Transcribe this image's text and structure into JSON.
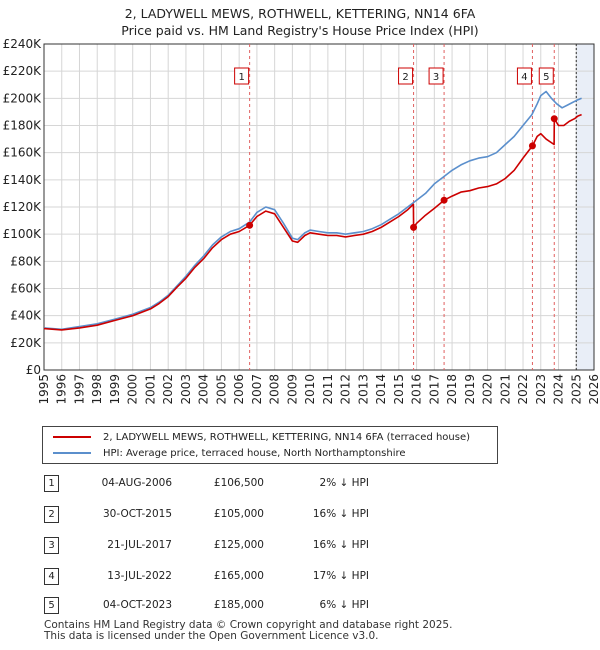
{
  "title_line1": "2, LADYWELL MEWS, ROTHWELL, KETTERING, NN14 6FA",
  "title_line2": "Price paid vs. HM Land Registry's House Price Index (HPI)",
  "legend": {
    "property_label": "2, LADYWELL MEWS, ROTHWELL, KETTERING, NN14 6FA (terraced house)",
    "hpi_label": "HPI: Average price, terraced house, North Northamptonshire"
  },
  "transactions": [
    {
      "num": "1",
      "date": "04-AUG-2006",
      "price": "£106,500",
      "hpi": "2% ↓ HPI"
    },
    {
      "num": "2",
      "date": "30-OCT-2015",
      "price": "£105,000",
      "hpi": "16% ↓ HPI"
    },
    {
      "num": "3",
      "date": "21-JUL-2017",
      "price": "£125,000",
      "hpi": "16% ↓ HPI"
    },
    {
      "num": "4",
      "date": "13-JUL-2022",
      "price": "£165,000",
      "hpi": "17% ↓ HPI"
    },
    {
      "num": "5",
      "date": "04-OCT-2023",
      "price": "£185,000",
      "hpi": "6% ↓ HPI"
    }
  ],
  "footer_line1": "Contains HM Land Registry data © Crown copyright and database right 2025.",
  "footer_line2": "This data is licensed under the Open Government Licence v3.0.",
  "colors": {
    "property": "#cc0000",
    "hpi": "#5b8fcc",
    "shade": "#e9eef7",
    "grid": "#d6d6d6",
    "marker_line": "#e06060"
  },
  "chart_data": {
    "type": "line",
    "xlim": [
      1995,
      2026
    ],
    "ylim": [
      0,
      240000
    ],
    "y_ticks": [
      0,
      20000,
      40000,
      60000,
      80000,
      100000,
      120000,
      140000,
      160000,
      180000,
      200000,
      220000,
      240000
    ],
    "y_tick_labels": [
      "£0",
      "£20K",
      "£40K",
      "£60K",
      "£80K",
      "£100K",
      "£120K",
      "£140K",
      "£160K",
      "£180K",
      "£200K",
      "£220K",
      "£240K"
    ],
    "x_ticks": [
      1995,
      1996,
      1997,
      1998,
      1999,
      2000,
      2001,
      2002,
      2003,
      2004,
      2005,
      2006,
      2007,
      2008,
      2009,
      2010,
      2011,
      2012,
      2013,
      2014,
      2015,
      2016,
      2017,
      2018,
      2019,
      2020,
      2021,
      2022,
      2023,
      2024,
      2025,
      2026
    ],
    "x_tick_labels": [
      "1995",
      "1996",
      "1997",
      "1998",
      "1999",
      "2000",
      "2001",
      "2002",
      "2003",
      "2004",
      "2005",
      "2006",
      "2007",
      "2008",
      "2009",
      "2010",
      "2011",
      "2012",
      "2013",
      "2014",
      "2015",
      "2016",
      "2017",
      "2018",
      "2019",
      "2020",
      "2021",
      "2022",
      "2023",
      "2024",
      "2025",
      "2026"
    ],
    "shaded_regions": [
      [
        2025.0,
        2026.0
      ]
    ],
    "series": [
      {
        "name": "HPI: Average price, terraced house, North Northamptonshire",
        "x": [
          1995.0,
          1996.0,
          1997.0,
          1998.0,
          1999.0,
          2000.0,
          2001.0,
          2001.5,
          2002.0,
          2002.5,
          2003.0,
          2003.5,
          2004.0,
          2004.5,
          2005.0,
          2005.5,
          2006.0,
          2006.6,
          2007.0,
          2007.5,
          2008.0,
          2008.5,
          2009.0,
          2009.3,
          2009.7,
          2010.0,
          2010.5,
          2011.0,
          2011.5,
          2012.0,
          2012.5,
          2013.0,
          2013.5,
          2014.0,
          2014.5,
          2015.0,
          2015.5,
          2016.0,
          2016.5,
          2017.0,
          2017.5,
          2018.0,
          2018.5,
          2019.0,
          2019.5,
          2020.0,
          2020.5,
          2021.0,
          2021.5,
          2022.0,
          2022.5,
          2022.8,
          2023.0,
          2023.3,
          2023.6,
          2023.9,
          2024.2,
          2024.5,
          2024.8,
          2025.1,
          2025.3
        ],
        "y": [
          31000,
          30000,
          32000,
          34000,
          37500,
          41000,
          46000,
          50000,
          55000,
          62000,
          69000,
          77000,
          84000,
          92000,
          98000,
          102000,
          104000,
          109000,
          116000,
          120000,
          118000,
          108000,
          97000,
          96000,
          101000,
          103000,
          102000,
          101000,
          101000,
          100000,
          101000,
          102000,
          104000,
          107000,
          111000,
          115000,
          120000,
          125000,
          130000,
          137000,
          142000,
          147000,
          151000,
          154000,
          156000,
          157000,
          160000,
          166000,
          172000,
          180000,
          188000,
          196000,
          202000,
          205000,
          200000,
          196000,
          193000,
          195000,
          197000,
          199000,
          200000
        ]
      },
      {
        "name": "2, LADYWELL MEWS, ROTHWELL, KETTERING, NN14 6FA (terraced house)",
        "x": [
          1995.0,
          1996.0,
          1997.0,
          1998.0,
          1999.0,
          2000.0,
          2001.0,
          2001.5,
          2002.0,
          2002.5,
          2003.0,
          2003.5,
          2004.0,
          2004.5,
          2005.0,
          2005.5,
          2006.0,
          2006.59,
          2007.0,
          2007.5,
          2008.0,
          2008.5,
          2009.0,
          2009.3,
          2009.7,
          2010.0,
          2010.5,
          2011.0,
          2011.5,
          2012.0,
          2012.5,
          2013.0,
          2013.5,
          2014.0,
          2014.5,
          2015.0,
          2015.5,
          2015.82,
          2015.83,
          2016.0,
          2016.5,
          2017.0,
          2017.55,
          2018.0,
          2018.5,
          2019.0,
          2019.5,
          2020.0,
          2020.5,
          2021.0,
          2021.5,
          2022.0,
          2022.53,
          2022.8,
          2023.0,
          2023.3,
          2023.75,
          2023.76,
          2024.0,
          2024.3,
          2024.6,
          2024.9,
          2025.1,
          2025.3
        ],
        "y": [
          30500,
          29500,
          31000,
          33000,
          36500,
          40000,
          45000,
          49000,
          54000,
          61000,
          67500,
          75500,
          82000,
          90000,
          96000,
          100000,
          102000,
          106500,
          113000,
          117000,
          115000,
          105000,
          95000,
          94000,
          99000,
          101000,
          100000,
          99000,
          99000,
          98000,
          99000,
          100000,
          102000,
          105000,
          109000,
          113000,
          118000,
          122000,
          105000,
          108000,
          114000,
          119000,
          125000,
          128000,
          131000,
          132000,
          134000,
          135000,
          137000,
          141000,
          147000,
          156000,
          165000,
          172000,
          174000,
          170000,
          166000,
          185000,
          180000,
          180000,
          183000,
          185000,
          187000,
          188000
        ]
      }
    ],
    "sales": [
      {
        "label": "1",
        "x": 2006.59,
        "y": 106500
      },
      {
        "label": "2",
        "x": 2015.83,
        "y": 105000
      },
      {
        "label": "3",
        "x": 2017.55,
        "y": 125000
      },
      {
        "label": "4",
        "x": 2022.53,
        "y": 165000
      },
      {
        "label": "5",
        "x": 2023.76,
        "y": 185000
      }
    ]
  }
}
